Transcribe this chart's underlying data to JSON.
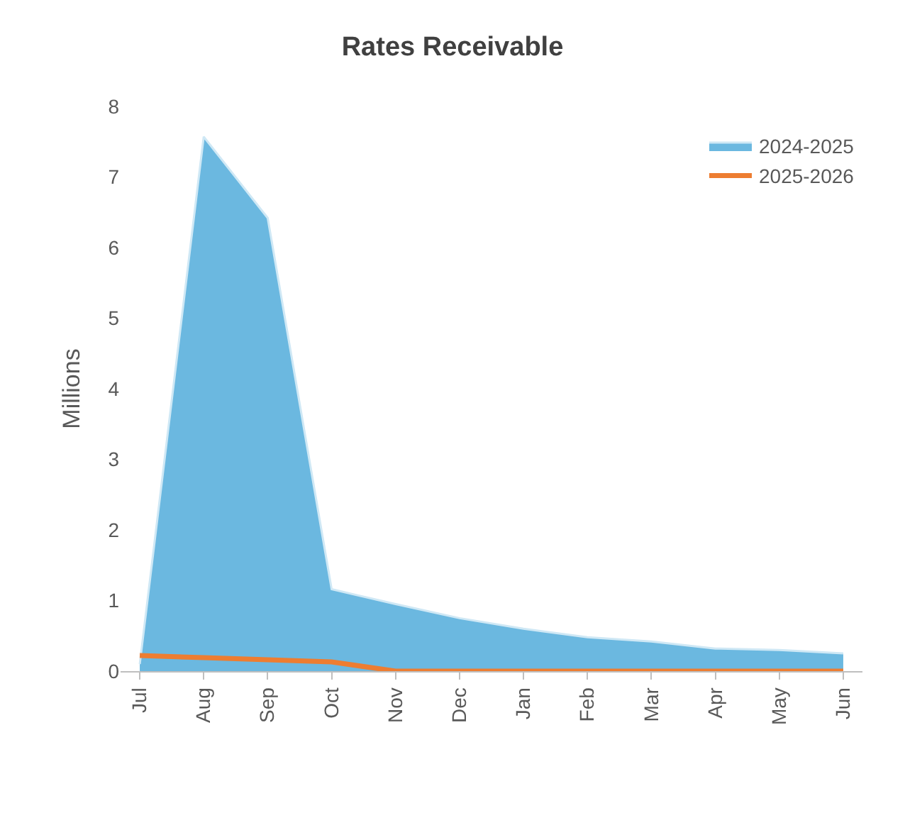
{
  "chart_data": {
    "type": "area",
    "title": "Rates Receivable",
    "ylabel": "Millions",
    "categories": [
      "Jul",
      "Aug",
      "Sep",
      "Oct",
      "Nov",
      "Dec",
      "Jan",
      "Feb",
      "Mar",
      "Apr",
      "May",
      "Jun"
    ],
    "series": [
      {
        "name": "2024-2025",
        "color": "#6bb8e0",
        "values": [
          0.1,
          7.57,
          6.42,
          1.16,
          0.95,
          0.75,
          0.6,
          0.48,
          0.42,
          0.32,
          0.3,
          0.25
        ]
      },
      {
        "name": "2025-2026",
        "type": "line",
        "color": "#ed7d31",
        "values": [
          0.22,
          0.19,
          0.16,
          0.13,
          0,
          0,
          0,
          0,
          0,
          0,
          0,
          0
        ]
      }
    ],
    "ylim": [
      0,
      8
    ],
    "yticks": [
      0,
      1,
      2,
      3,
      4,
      5,
      6,
      7,
      8
    ],
    "legend": "top right"
  }
}
